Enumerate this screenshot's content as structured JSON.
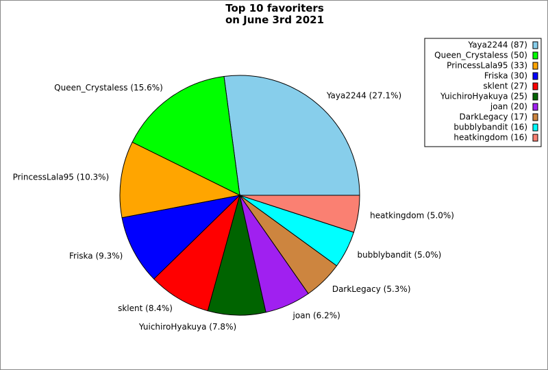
{
  "chart_data": {
    "type": "pie",
    "title": "Top 10 favoriters\non June 3rd 2021",
    "values": [
      27.1,
      15.6,
      10.3,
      9.3,
      8.4,
      7.8,
      6.2,
      5.3,
      5.0,
      5.0
    ],
    "value_labels": [
      "Yaya2244 (27.1%)",
      "Queen_Crystaless (15.6%)",
      "PrincessLala95 (10.3%)",
      "Friska (9.3%)",
      "sklent (8.4%)",
      "YuichiroHyakuya (7.8%)",
      "joan (6.2%)",
      "DarkLegacy (5.3%)",
      "bubblybandit (5.0%)",
      "heatkingdom (5.0%)"
    ],
    "legend_labels": [
      "Yaya2244 (87)",
      "Queen_Crystaless (50)",
      "PrincessLala95 (33)",
      "Friska (30)",
      "sklent (27)",
      "YuichiroHyakuya (25)",
      "joan (20)",
      "DarkLegacy (17)",
      "bubblybandit (16)",
      "heatkingdom (16)"
    ],
    "colors": [
      "#87ceeb",
      "#00ff00",
      "#ffa500",
      "#0000ff",
      "#ff0000",
      "#006400",
      "#a020f0",
      "#cd853f",
      "#00ffff",
      "#fa8072"
    ],
    "legend": "upper right"
  }
}
